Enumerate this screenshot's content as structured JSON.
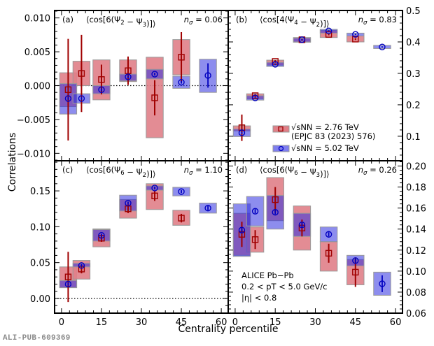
{
  "watermark": "ALI-PUB-609369",
  "colors": {
    "red_box": "#e08088",
    "red_marker": "#a00000",
    "blue_box": "#7f7fee",
    "blue_marker": "#0000c0",
    "overlap": "#6a3a8c"
  },
  "chart_data": {
    "type": "scatter",
    "xlabel": "Centrality percentile",
    "ylabel": "Correlations",
    "xlim": [
      -2.6,
      62.6
    ],
    "xticks": [
      0,
      15,
      30,
      45,
      60
    ],
    "legend": {
      "placement": "bottom-right of panel (b)",
      "entries": [
        {
          "label_line1": "√s_NN = 2.76 TeV",
          "label_line2": "(EPJC 83 (2023) 576)",
          "series": "2.76"
        },
        {
          "label_line1": "√s_NN = 5.02 TeV",
          "series": "5.02"
        }
      ]
    },
    "annotation": {
      "lines": [
        "ALICE Pb−Pb",
        "0.2 < pT < 5.0 GeV/c",
        "|η| < 0.8"
      ]
    },
    "panels": [
      {
        "id": "a",
        "label": "(a)",
        "observable": "⟨cos[6(Ψ2 − Ψ3)]⟩",
        "nsigma": "nσ = 0.06",
        "ylim": [
          -0.0111,
          0.0111
        ],
        "yticks": [
          -0.01,
          -0.005,
          0.0,
          0.005,
          0.01
        ],
        "ytick_labels": [
          "−0.010",
          "−0.005",
          "0.000",
          "0.005",
          "0.010"
        ],
        "yaxis_side": "left",
        "zero_line": true,
        "series": [
          {
            "name": "2.76 TeV",
            "x": [
              2.5,
              7.5,
              15,
              25,
              35,
              45
            ],
            "y": [
              -0.0006,
              0.0018,
              0.0009,
              0.0022,
              -0.0018,
              0.0042
            ],
            "stat": [
              0.0075,
              0.0057,
              0.0022,
              0.0021,
              0.0026,
              0.0037
            ],
            "sys_lo": [
              -0.0031,
              0.0,
              -0.0021,
              0.0006,
              -0.0077,
              0.0016
            ],
            "sys_hi": [
              0.0019,
              0.0036,
              0.0038,
              0.0038,
              0.0042,
              0.0068
            ]
          },
          {
            "name": "5.02 TeV",
            "x": [
              2.5,
              7.5,
              15,
              25,
              35,
              45,
              55
            ],
            "y": [
              -0.0019,
              -0.0019,
              -0.0006,
              0.0013,
              0.0017,
              0.0005,
              0.0015
            ],
            "stat": [
              0.0002,
              0.0002,
              0.0002,
              0.0002,
              0.0002,
              0.0002,
              0.0018
            ],
            "sys_lo": [
              -0.0042,
              -0.0026,
              -0.0012,
              0.0007,
              0.001,
              -0.0004,
              -0.001
            ],
            "sys_hi": [
              0.0003,
              -0.0012,
              0.0,
              0.0017,
              0.0024,
              0.0014,
              0.0039
            ]
          }
        ]
      },
      {
        "id": "b",
        "label": "(b)",
        "observable": "⟨cos[4(Ψ4 − Ψ2)]⟩",
        "nsigma": "nσ = 0.83",
        "ylim": [
          0.022,
          0.5
        ],
        "yticks": [
          0.1,
          0.2,
          0.3,
          0.4,
          0.5
        ],
        "ytick_labels": [
          "0.1",
          "0.2",
          "0.3",
          "0.4",
          "0.5"
        ],
        "yaxis_side": "right",
        "zero_line": false,
        "series": [
          {
            "name": "2.76 TeV",
            "x": [
              2.5,
              7.5,
              15,
              25,
              35,
              45
            ],
            "y": [
              0.127,
              0.229,
              0.338,
              0.407,
              0.424,
              0.409
            ],
            "stat": [
              0.042,
              0.005,
              0.004,
              0.003,
              0.003,
              0.003
            ],
            "sys_lo": [
              0.117,
              0.219,
              0.326,
              0.399,
              0.414,
              0.4
            ],
            "sys_hi": [
              0.133,
              0.235,
              0.342,
              0.414,
              0.437,
              0.419
            ]
          },
          {
            "name": "5.02 TeV",
            "x": [
              2.5,
              7.5,
              15,
              25,
              35,
              45,
              55
            ],
            "y": [
              0.111,
              0.222,
              0.329,
              0.407,
              0.435,
              0.424,
              0.384
            ],
            "stat": [
              0.003,
              0.002,
              0.002,
              0.002,
              0.002,
              0.002,
              0.002
            ],
            "sys_lo": [
              0.099,
              0.215,
              0.322,
              0.4,
              0.428,
              0.419,
              0.379
            ],
            "sys_hi": [
              0.123,
              0.229,
              0.335,
              0.412,
              0.44,
              0.428,
              0.389
            ]
          }
        ]
      },
      {
        "id": "c",
        "label": "(c)",
        "observable": "⟨cos[6(Ψ6 − Ψ2)]⟩",
        "nsigma": "nσ = 1.10",
        "ylim": [
          -0.0205,
          0.192
        ],
        "yticks": [
          0.0,
          0.05,
          0.1,
          0.15
        ],
        "ytick_labels": [
          "0.00",
          "0.05",
          "0.10",
          "0.15"
        ],
        "yaxis_side": "left",
        "zero_line": true,
        "series": [
          {
            "name": "2.76 TeV",
            "x": [
              2.5,
              7.5,
              15,
              25,
              35,
              45
            ],
            "y": [
              0.03,
              0.041,
              0.084,
              0.125,
              0.143,
              0.112
            ],
            "stat": [
              0.035,
              0.006,
              0.005,
              0.006,
              0.007,
              0.006
            ],
            "sys_lo": [
              0.015,
              0.027,
              0.072,
              0.112,
              0.124,
              0.102
            ],
            "sys_hi": [
              0.044,
              0.053,
              0.097,
              0.138,
              0.16,
              0.123
            ]
          },
          {
            "name": "5.02 TeV",
            "x": [
              2.5,
              7.5,
              15,
              25,
              35,
              45,
              55
            ],
            "y": [
              0.02,
              0.046,
              0.088,
              0.133,
              0.154,
              0.149,
              0.126
            ],
            "stat": [
              0.002,
              0.002,
              0.002,
              0.002,
              0.002,
              0.002,
              0.003
            ],
            "sys_lo": [
              0.015,
              0.044,
              0.08,
              0.122,
              0.151,
              0.143,
              0.119
            ],
            "sys_hi": [
              0.025,
              0.049,
              0.096,
              0.144,
              0.157,
              0.155,
              0.133
            ]
          }
        ]
      },
      {
        "id": "d",
        "label": "(d)",
        "observable": "⟨cos[6(Ψ6 − Ψ3)]⟩",
        "nsigma": "nσ = 0.26",
        "ylim": [
          0.06,
          0.205
        ],
        "yticks": [
          0.06,
          0.08,
          0.1,
          0.12,
          0.14,
          0.16,
          0.18,
          0.2
        ],
        "ytick_labels": [
          "0.06",
          "0.08",
          "0.10",
          "0.12",
          "0.14",
          "0.16",
          "0.18",
          "0.20"
        ],
        "yaxis_side": "right",
        "zero_line": false,
        "series": [
          {
            "name": "2.76 TeV",
            "x": [
              2.5,
              7.5,
              15,
              25,
              35,
              45
            ],
            "y": [
              0.135,
              0.13,
              0.168,
              0.141,
              0.117,
              0.099
            ],
            "stat": [
              0.012,
              0.009,
              0.012,
              0.008,
              0.009,
              0.014
            ],
            "sys_lo": [
              0.115,
              0.118,
              0.148,
              0.12,
              0.1,
              0.087
            ],
            "sys_hi": [
              0.155,
              0.142,
              0.189,
              0.162,
              0.128,
              0.111
            ]
          },
          {
            "name": "5.02 TeV",
            "x": [
              2.5,
              7.5,
              15,
              25,
              35,
              45,
              55
            ],
            "y": [
              0.139,
              0.157,
              0.156,
              0.144,
              0.135,
              0.11,
              0.088
            ],
            "stat": [
              0.002,
              0.002,
              0.002,
              0.002,
              0.002,
              0.002,
              0.008
            ],
            "sys_lo": [
              0.114,
              0.143,
              0.14,
              0.133,
              0.128,
              0.105,
              0.077
            ],
            "sys_hi": [
              0.164,
              0.171,
              0.172,
              0.155,
              0.142,
              0.115,
              0.099
            ]
          }
        ]
      }
    ]
  }
}
